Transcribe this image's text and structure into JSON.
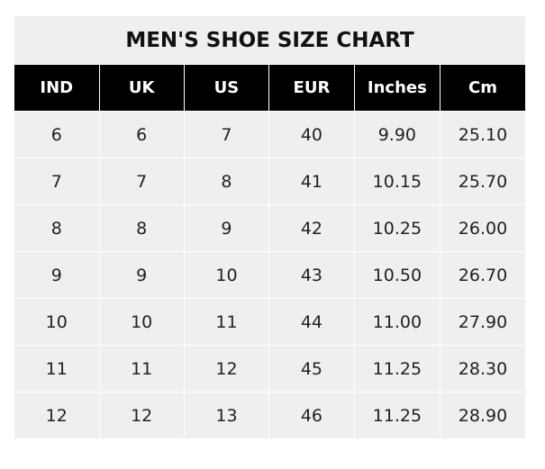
{
  "chart_data": {
    "type": "table",
    "title": "MEN'S SHOE SIZE CHART",
    "columns": [
      "IND",
      "UK",
      "US",
      "EUR",
      "Inches",
      "Cm"
    ],
    "rows": [
      [
        "6",
        "6",
        "7",
        "40",
        "9.90",
        "25.10"
      ],
      [
        "7",
        "7",
        "8",
        "41",
        "10.15",
        "25.70"
      ],
      [
        "8",
        "8",
        "9",
        "42",
        "10.25",
        "26.00"
      ],
      [
        "9",
        "9",
        "10",
        "43",
        "10.50",
        "26.70"
      ],
      [
        "10",
        "10",
        "11",
        "44",
        "11.00",
        "27.90"
      ],
      [
        "11",
        "11",
        "12",
        "45",
        "11.25",
        "28.30"
      ],
      [
        "12",
        "12",
        "13",
        "46",
        "11.25",
        "28.90"
      ]
    ]
  },
  "colors": {
    "header_bg": "#000000",
    "header_text": "#ffffff",
    "cell_bg": "#efefef"
  }
}
